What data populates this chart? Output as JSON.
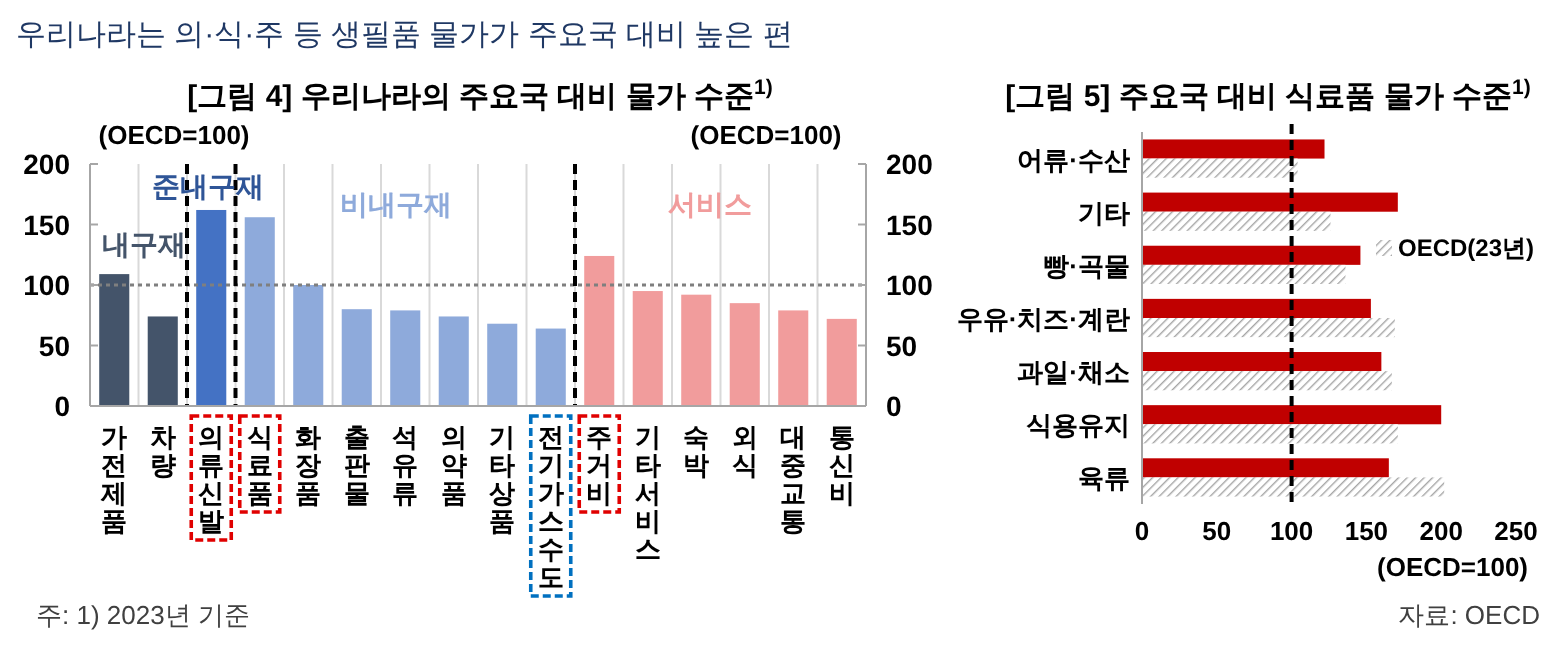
{
  "chart_data": [
    {
      "type": "bar",
      "title": "[그림 4] 우리나라의 주요국 대비 물가 수준$^{1)}$",
      "ylabel": "(OECD=100)",
      "y2label": "(OECD=100)",
      "categories": [
        "가전제품",
        "차량",
        "의류신발",
        "식료품",
        "화장품",
        "출판물",
        "석유류",
        "의약품",
        "기타상품",
        "전기가스수도",
        "주거비",
        "기타서비스",
        "숙박",
        "외식",
        "대중교통",
        "통신비"
      ],
      "values": [
        109,
        74,
        162,
        156,
        100,
        80,
        79,
        74,
        68,
        64,
        124,
        95,
        92,
        85,
        79,
        72
      ],
      "colors": [
        "#44546a",
        "#44546a",
        "#4472c4",
        "#8eaadb",
        "#8eaadb",
        "#8eaadb",
        "#8eaadb",
        "#8eaadb",
        "#8eaadb",
        "#8eaadb",
        "#f19c9c",
        "#f19c9c",
        "#f19c9c",
        "#f19c9c",
        "#f19c9c",
        "#f19c9c"
      ],
      "ylim": [
        0,
        200
      ],
      "yticks": [
        0,
        50,
        100,
        150,
        200
      ],
      "y2lim": [
        0,
        200
      ],
      "y2ticks": [
        0,
        50,
        100,
        150,
        200
      ],
      "grid": "x",
      "ref_lines": [
        {
          "axis": "y",
          "value": 100,
          "color": "#7f7f7f",
          "line_style": "dotted"
        }
      ],
      "annotations": [
        "우리나라는 의·식·주 등 생필품 물가가 주요국 대비 높은 편",
        "내구재",
        "준내구재",
        "비내구재",
        "서비스",
        "주: 1) 2023년 기준"
      ]
    },
    {
      "type": "bar",
      "orientation": "horizontal",
      "title": "[그림 5] 주요국 대비 식료품 물가 수준$^{1)}$",
      "xlabel": "(OECD=100)",
      "categories": [
        "어류·수산",
        "기타",
        "빵·곡물",
        "우유·치즈·계란",
        "과일·채소",
        "식용유지",
        "육류"
      ],
      "series": [
        {
          "color": "#c00000",
          "values": [
            122,
            171,
            146,
            153,
            160,
            200,
            165
          ]
        },
        {
          "name": "OECD(23년)",
          "color": "#a6a6a6",
          "values": [
            104,
            126,
            136,
            169,
            167,
            171,
            202
          ]
        }
      ],
      "xlim": [
        0,
        250
      ],
      "xticks": [
        0,
        50,
        100,
        150,
        200,
        250
      ],
      "ref_lines": [
        {
          "axis": "x",
          "value": 100,
          "color": "#000000",
          "line_style": "dashed"
        }
      ],
      "legend": "right",
      "annotations": [
        "자료: OECD"
      ]
    }
  ]
}
